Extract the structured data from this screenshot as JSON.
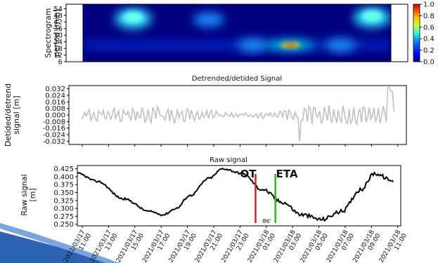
{
  "chart_data": [
    {
      "type": "heatmap",
      "ylabel": "Spectrogram\nperiod [min]",
      "y_ticks": [
        6,
        12,
        18,
        24,
        30,
        36,
        42,
        48,
        54
      ],
      "x_range": [
        "2021/03/17 10:30",
        "2021/03/18 11:00"
      ],
      "y_range": [
        6,
        58
      ],
      "colorscale": [
        "#00007f",
        "#0000ff",
        "#007fff",
        "#00ffff",
        "#7fff7f",
        "#ffff00",
        "#ff7f00",
        "#ff0000"
      ],
      "colorbar_ticks": [
        0.0,
        0.2,
        0.4,
        0.6,
        0.8,
        1.0
      ],
      "hotspots": [
        {
          "time": "2021/03/17 14:30",
          "period": 45,
          "intensity": 0.55
        },
        {
          "time": "2021/03/17 20:30",
          "period": 44,
          "intensity": 0.35
        },
        {
          "time": "2021/03/18 00:00",
          "period": 21,
          "intensity": 0.4
        },
        {
          "time": "2021/03/18 03:00",
          "period": 21,
          "intensity": 1.0
        },
        {
          "time": "2021/03/18 07:00",
          "period": 21,
          "intensity": 0.35
        },
        {
          "time": "2021/03/18 09:30",
          "period": 46,
          "intensity": 0.55
        }
      ]
    },
    {
      "type": "line",
      "title": "Detrended/detided Signal",
      "ylabel": "Detided/detrend\nsignal [m]",
      "y_ticks": [
        "0.032",
        "0.024",
        "0.016",
        "0.008",
        "0.000",
        "-0.008",
        "-0.016",
        "-0.024",
        "-0.032"
      ],
      "ylim": [
        -0.036,
        0.036
      ],
      "series": [
        {
          "color": "#c0c0c0",
          "amplitude": 0.008,
          "spike_max": 0.034,
          "spike_min": -0.032
        }
      ]
    },
    {
      "type": "line",
      "title": "Raw signal",
      "ylabel": "Raw signal\n[m]",
      "y_ticks": [
        "0.425",
        "0.400",
        "0.375",
        "0.350",
        "0.325",
        "0.300",
        "0.275",
        "0.250"
      ],
      "ylim": [
        0.245,
        0.435
      ],
      "series": [
        {
          "color": "#000000",
          "x": [
            "2021/03/17 10:30",
            "2021/03/17 12:00",
            "2021/03/17 14:00",
            "2021/03/17 16:00",
            "2021/03/17 17:00",
            "2021/03/17 18:00",
            "2021/03/17 19:00",
            "2021/03/17 20:30",
            "2021/03/17 21:30",
            "2021/03/17 23:00",
            "2021/03/18 00:30",
            "2021/03/18 02:00",
            "2021/03/18 03:30",
            "2021/03/18 05:00",
            "2021/03/18 06:30",
            "2021/03/18 08:00",
            "2021/03/18 09:00",
            "2021/03/18 10:30"
          ],
          "y": [
            0.41,
            0.385,
            0.33,
            0.29,
            0.28,
            0.3,
            0.34,
            0.395,
            0.425,
            0.41,
            0.36,
            0.32,
            0.28,
            0.265,
            0.29,
            0.36,
            0.41,
            0.385
          ]
        }
      ],
      "annotations": [
        {
          "label": "OT",
          "time": "2021/03/18 00:00",
          "color": "#e02020"
        },
        {
          "label": "ETA",
          "time": "2021/03/18 01:30",
          "color": "#20c020"
        },
        {
          "label": "86'",
          "time": "2021/03/18 00:45"
        }
      ]
    }
  ],
  "x_tick_labels": [
    "2021/03/17\n11:00",
    "2021/03/17\n13:00",
    "2021/03/17\n15:00",
    "2021/03/17\n17:00",
    "2021/03/17\n19:00",
    "2021/03/17\n21:00",
    "2021/03/17\n23:00",
    "2021/03/18\n01:00",
    "2021/03/18\n03:00",
    "2021/03/18\n05:00",
    "2021/03/18\n07:00",
    "2021/03/18\n09:00",
    "2021/03/18\n11:00"
  ],
  "colors": {
    "decor": "#2f63b0",
    "decor_light": "#7aa6de"
  }
}
